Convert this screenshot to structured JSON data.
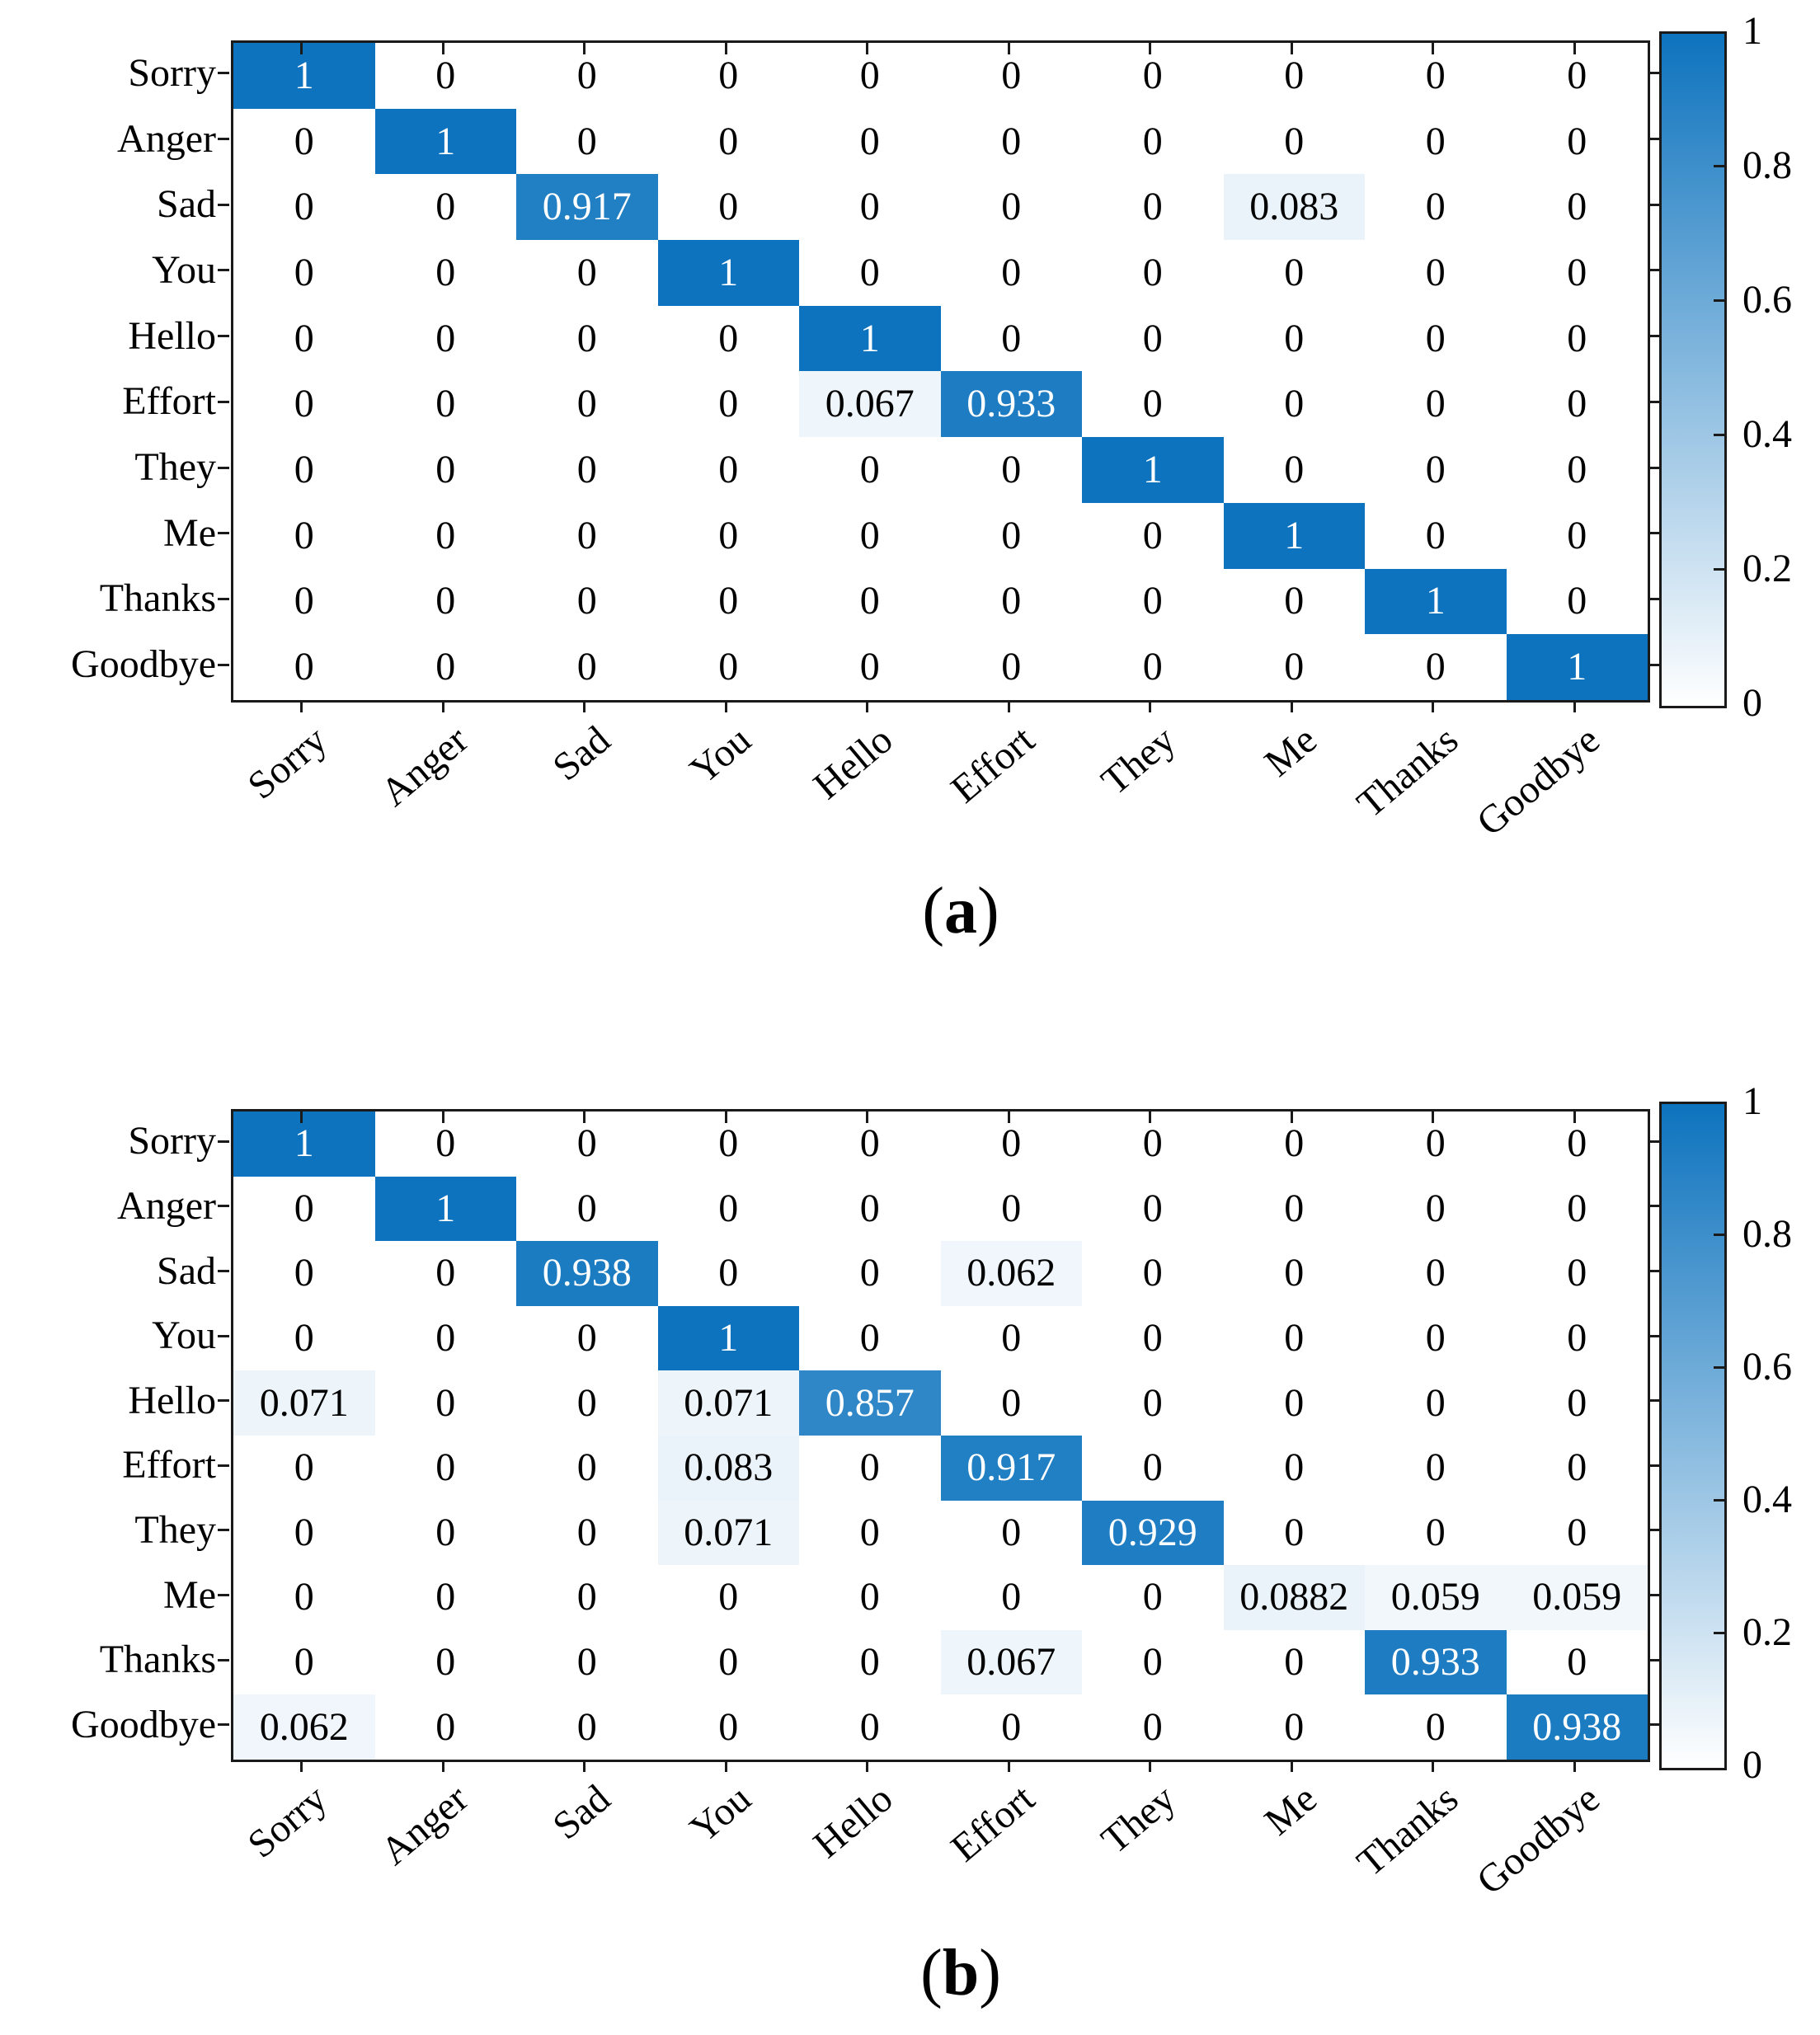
{
  "figure": {
    "background": "#ffffff",
    "axis_color": "#1a1a1a",
    "cell_text_dark": "#000000",
    "cell_text_light": "#ffffff"
  },
  "chart_data": [
    {
      "id": "a",
      "type": "heatmap",
      "caption": {
        "open": "(",
        "letter": "a",
        "close": ")"
      },
      "categories": [
        "Sorry",
        "Anger",
        "Sad",
        "You",
        "Hello",
        "Effort",
        "They",
        "Me",
        "Thanks",
        "Goodbye"
      ],
      "x_labels": [
        "Sorry",
        "Anger",
        "Sad",
        "You",
        "Hello",
        "Effort",
        "They",
        "Me",
        "Thanks",
        "Goodbye"
      ],
      "rows": [
        [
          1,
          0,
          0,
          0,
          0,
          0,
          0,
          0,
          0,
          0
        ],
        [
          0,
          1,
          0,
          0,
          0,
          0,
          0,
          0,
          0,
          0
        ],
        [
          0,
          0,
          0.917,
          0,
          0,
          0,
          0,
          0.083,
          0,
          0
        ],
        [
          0,
          0,
          0,
          1,
          0,
          0,
          0,
          0,
          0,
          0
        ],
        [
          0,
          0,
          0,
          0,
          1,
          0,
          0,
          0,
          0,
          0
        ],
        [
          0,
          0,
          0,
          0,
          0.067,
          0.933,
          0,
          0,
          0,
          0
        ],
        [
          0,
          0,
          0,
          0,
          0,
          0,
          1,
          0,
          0,
          0
        ],
        [
          0,
          0,
          0,
          0,
          0,
          0,
          0,
          1,
          0,
          0
        ],
        [
          0,
          0,
          0,
          0,
          0,
          0,
          0,
          0,
          1,
          0
        ],
        [
          0,
          0,
          0,
          0,
          0,
          0,
          0,
          0,
          0,
          1
        ]
      ],
      "colormap": {
        "low": "#ffffff",
        "high": "#0d73be"
      },
      "colorbar": {
        "ticks": [
          1,
          0.8,
          0.6,
          0.4,
          0.2,
          0
        ],
        "min": 0,
        "max": 1,
        "position": "right"
      },
      "axes": {
        "x_rotation_deg": -40,
        "grid": false
      }
    },
    {
      "id": "b",
      "type": "heatmap",
      "caption": {
        "open": "(",
        "letter": "b",
        "close": ")"
      },
      "categories": [
        "Sorry",
        "Anger",
        "Sad",
        "You",
        "Hello",
        "Effort",
        "They",
        "Me",
        "Thanks",
        "Goodbye"
      ],
      "x_labels": [
        "Sorry",
        "Anger",
        "Sad",
        "You",
        "Hello",
        "Effort",
        "They",
        "Me",
        "Thanks",
        "Goodbye"
      ],
      "rows": [
        [
          1,
          0,
          0,
          0,
          0,
          0,
          0,
          0,
          0,
          0
        ],
        [
          0,
          1,
          0,
          0,
          0,
          0,
          0,
          0,
          0,
          0
        ],
        [
          0,
          0,
          0.938,
          0,
          0,
          0.062,
          0,
          0,
          0,
          0
        ],
        [
          0,
          0,
          0,
          1,
          0,
          0,
          0,
          0,
          0,
          0
        ],
        [
          0.071,
          0,
          0,
          0.071,
          0.857,
          0,
          0,
          0,
          0,
          0
        ],
        [
          0,
          0,
          0,
          0.083,
          0,
          0.917,
          0,
          0,
          0,
          0
        ],
        [
          0,
          0,
          0,
          0.071,
          0,
          0,
          0.929,
          0,
          0,
          0
        ],
        [
          0,
          0,
          0,
          0,
          0,
          0,
          0,
          0.0882,
          0.059,
          0.059
        ],
        [
          0,
          0,
          0,
          0,
          0,
          0.067,
          0,
          0,
          0.933,
          0
        ],
        [
          0.062,
          0,
          0,
          0,
          0,
          0,
          0,
          0,
          0,
          0.938
        ]
      ],
      "colormap": {
        "low": "#ffffff",
        "high": "#0d73be"
      },
      "colorbar": {
        "ticks": [
          1,
          0.8,
          0.6,
          0.4,
          0.2,
          0
        ],
        "min": 0,
        "max": 1,
        "position": "right"
      },
      "axes": {
        "x_rotation_deg": -40,
        "grid": false
      }
    }
  ]
}
